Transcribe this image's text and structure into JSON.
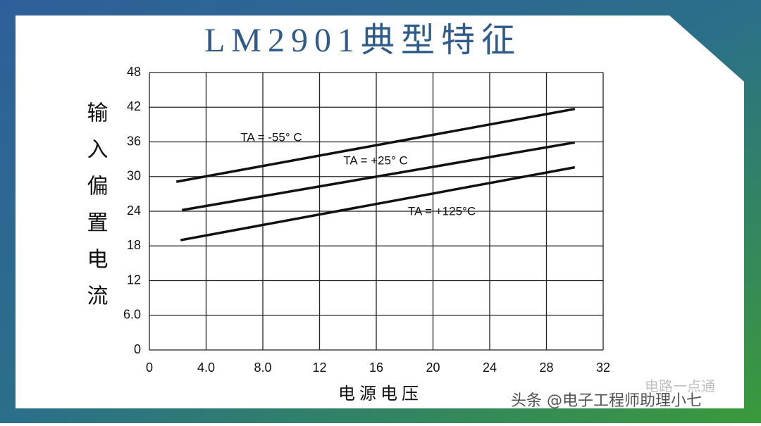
{
  "chart_data": {
    "type": "line",
    "title": "LM2901典型特征",
    "ylabel": "输入偏置电流",
    "xlabel": "电源电压",
    "xlim": [
      0,
      32
    ],
    "xticks": [
      0,
      {
        "value": 4,
        "label": "4.0"
      },
      {
        "value": 8,
        "label": "8.0"
      },
      12,
      16,
      20,
      24,
      28,
      32
    ],
    "ylim": [
      0,
      48
    ],
    "yticks": [
      0,
      {
        "value": 6,
        "label": "6.0"
      },
      12,
      18,
      24,
      30,
      36,
      42,
      48
    ],
    "grid": true,
    "series": [
      {
        "name": "TA = -55° C",
        "color": "#111111",
        "x": [
          1.9,
          30
        ],
        "values": [
          29.1,
          41.7
        ]
      },
      {
        "name": "TA = +25° C",
        "color": "#111111",
        "x": [
          2.3,
          30
        ],
        "values": [
          24.2,
          35.9
        ]
      },
      {
        "name": "TA = +125°C",
        "color": "#111111",
        "x": [
          2.2,
          30
        ],
        "values": [
          19.0,
          31.6
        ]
      }
    ]
  },
  "watermarks": [
    "头条 @电子工程师助理小七",
    "电路一点通"
  ]
}
